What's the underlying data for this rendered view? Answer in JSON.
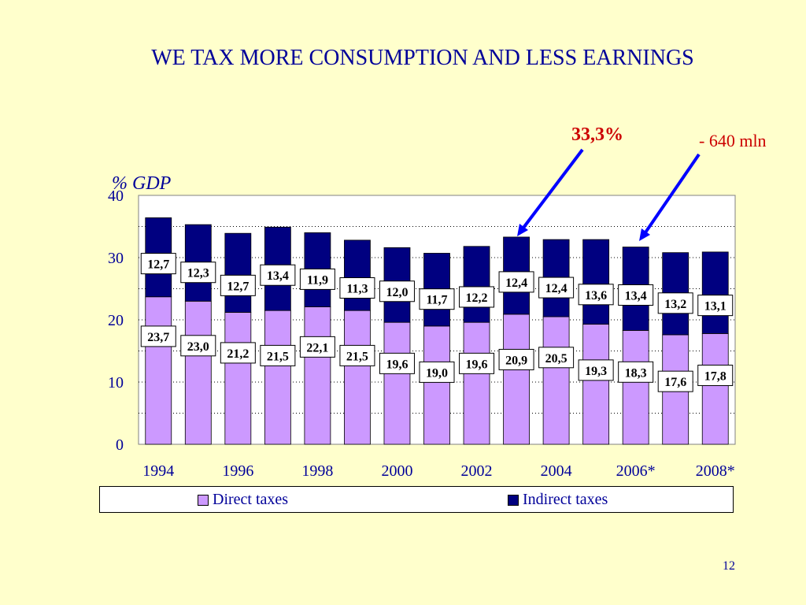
{
  "slide": {
    "title": "WE TAX MORE CONSUMPTION AND LESS EARNINGS",
    "page_number": "12"
  },
  "annotations": {
    "percent": "33,3%",
    "amount": "- 640 mln",
    "arrow_color": "#0000ff",
    "text_color": "#cc0000"
  },
  "chart_data": {
    "type": "bar",
    "stacked": true,
    "title": "",
    "ylabel": "% GDP",
    "ylim": [
      0,
      40
    ],
    "yticks": [
      "0",
      "10",
      "20",
      "30",
      "40"
    ],
    "categories": [
      "1994",
      "1995",
      "1996",
      "1997",
      "1998",
      "1999",
      "2000",
      "2001",
      "2002",
      "2003",
      "2004",
      "2005",
      "2006*",
      "2007*",
      "2008*"
    ],
    "xtick_labels": [
      "1994",
      "1996",
      "1998",
      "2000",
      "2002",
      "2004",
      "2006*",
      "2008*"
    ],
    "series": [
      {
        "name": "Direct taxes",
        "color": "#cc99ff",
        "values": [
          23.7,
          23.0,
          21.2,
          21.5,
          22.1,
          21.5,
          19.6,
          19.0,
          19.6,
          20.9,
          20.5,
          19.3,
          18.3,
          17.6,
          17.8
        ],
        "labels": [
          "23,7",
          "23,0",
          "21,2",
          "21,5",
          "22,1",
          "21,5",
          "19,6",
          "19,0",
          "19,6",
          "20,9",
          "20,5",
          "19,3",
          "18,3",
          "17,6",
          "17,8"
        ]
      },
      {
        "name": "Indirect taxes",
        "color": "#000080",
        "values": [
          12.7,
          12.3,
          12.7,
          13.4,
          11.9,
          11.3,
          12.0,
          11.7,
          12.2,
          12.4,
          12.4,
          13.6,
          13.4,
          13.2,
          13.1
        ],
        "labels": [
          "12,7",
          "12,3",
          "12,7",
          "13,4",
          "11,9",
          "11,3",
          "12,0",
          "11,7",
          "12,2",
          "12,4",
          "12,4",
          "13,6",
          "13,4",
          "13,2",
          "13,1"
        ]
      }
    ],
    "grid": true,
    "legend_position": "bottom"
  }
}
